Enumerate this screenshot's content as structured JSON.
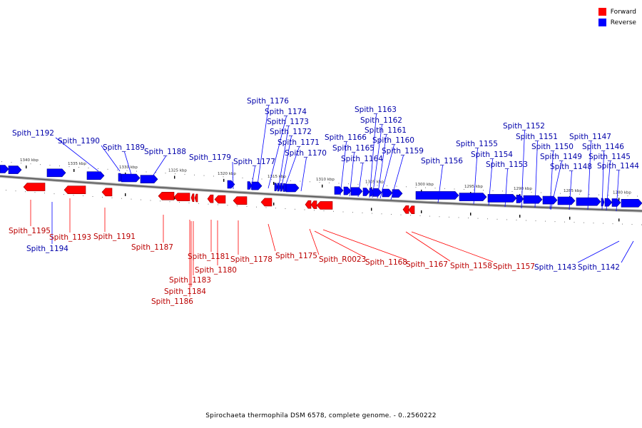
{
  "caption": "Spirochaeta thermophila DSM 6578, complete genome. - 0..2560222",
  "legend": [
    {
      "label": "Forward",
      "color": "#ff0000"
    },
    {
      "label": "Reverse",
      "color": "#0000ff"
    }
  ],
  "colors": {
    "forward": "#ff0000",
    "forward_label": "#bb0000",
    "reverse": "#0000ff",
    "reverse_label": "#0000aa",
    "backbone": "#999999"
  },
  "scale_ticks": [
    "1340 kbp",
    "1335 kbp",
    "1330 kbp",
    "1325 kbp",
    "1320 kbp",
    "1315 kbp",
    "1310 kbp",
    "1305 kbp",
    "1300 kbp",
    "1295 kbp",
    "1290 kbp",
    "1285 kbp",
    "1280 kbp"
  ],
  "genes": [
    {
      "label": "Spith_1192",
      "strand": "reverse"
    },
    {
      "label": "Spith_1190",
      "strand": "reverse"
    },
    {
      "label": "Spith_1189",
      "strand": "reverse"
    },
    {
      "label": "Spith_1188",
      "strand": "reverse"
    },
    {
      "label": "Spith_1179",
      "strand": "reverse"
    },
    {
      "label": "Spith_1177",
      "strand": "reverse"
    },
    {
      "label": "Spith_1176",
      "strand": "reverse"
    },
    {
      "label": "Spith_1174",
      "strand": "reverse"
    },
    {
      "label": "Spith_1173",
      "strand": "reverse"
    },
    {
      "label": "Spith_1172",
      "strand": "reverse"
    },
    {
      "label": "Spith_1171",
      "strand": "reverse"
    },
    {
      "label": "Spith_1170",
      "strand": "reverse"
    },
    {
      "label": "Spith_1166",
      "strand": "reverse"
    },
    {
      "label": "Spith_1165",
      "strand": "reverse"
    },
    {
      "label": "Spith_1164",
      "strand": "reverse"
    },
    {
      "label": "Spith_1163",
      "strand": "reverse"
    },
    {
      "label": "Spith_1162",
      "strand": "reverse"
    },
    {
      "label": "Spith_1161",
      "strand": "reverse"
    },
    {
      "label": "Spith_1160",
      "strand": "reverse"
    },
    {
      "label": "Spith_1159",
      "strand": "reverse"
    },
    {
      "label": "Spith_1156",
      "strand": "reverse"
    },
    {
      "label": "Spith_1155",
      "strand": "reverse"
    },
    {
      "label": "Spith_1154",
      "strand": "reverse"
    },
    {
      "label": "Spith_1153",
      "strand": "reverse"
    },
    {
      "label": "Spith_1152",
      "strand": "reverse"
    },
    {
      "label": "Spith_1151",
      "strand": "reverse"
    },
    {
      "label": "Spith_1150",
      "strand": "reverse"
    },
    {
      "label": "Spith_1149",
      "strand": "reverse"
    },
    {
      "label": "Spith_1148",
      "strand": "reverse"
    },
    {
      "label": "Spith_1147",
      "strand": "reverse"
    },
    {
      "label": "Spith_1146",
      "strand": "reverse"
    },
    {
      "label": "Spith_1145",
      "strand": "reverse"
    },
    {
      "label": "Spith_1144",
      "strand": "reverse"
    },
    {
      "label": "Spith_1194",
      "strand": "reverse"
    },
    {
      "label": "Spith_1143",
      "strand": "reverse"
    },
    {
      "label": "Spith_1142",
      "strand": "reverse"
    },
    {
      "label": "Spith_1195",
      "strand": "forward"
    },
    {
      "label": "Spith_1193",
      "strand": "forward"
    },
    {
      "label": "Spith_1191",
      "strand": "forward"
    },
    {
      "label": "Spith_1187",
      "strand": "forward"
    },
    {
      "label": "Spith_1181",
      "strand": "forward"
    },
    {
      "label": "Spith_1180",
      "strand": "forward"
    },
    {
      "label": "Spith_1183",
      "strand": "forward"
    },
    {
      "label": "Spith_1184",
      "strand": "forward"
    },
    {
      "label": "Spith_1186",
      "strand": "forward"
    },
    {
      "label": "Spith_1178",
      "strand": "forward"
    },
    {
      "label": "Spith_1175",
      "strand": "forward"
    },
    {
      "label": "Spith_R0023",
      "strand": "forward"
    },
    {
      "label": "Spith_1168",
      "strand": "forward"
    },
    {
      "label": "Spith_1167",
      "strand": "forward"
    },
    {
      "label": "Spith_1158",
      "strand": "forward"
    },
    {
      "label": "Spith_1157",
      "strand": "forward"
    }
  ]
}
